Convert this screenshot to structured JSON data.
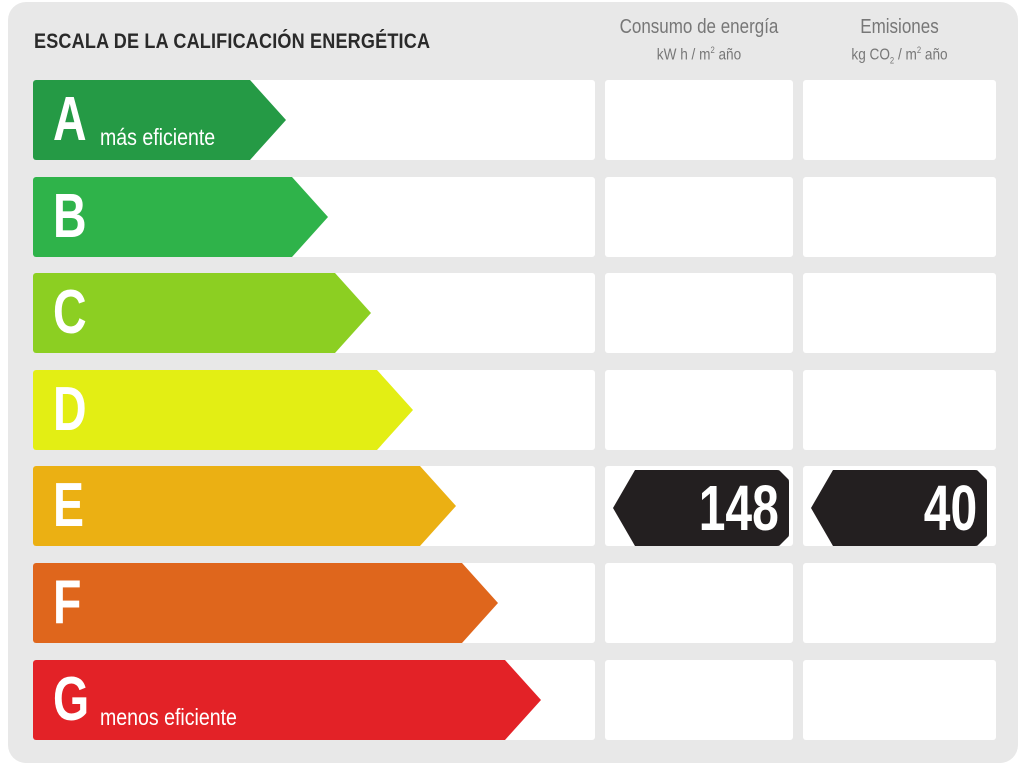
{
  "title": "ESCALA DE LA CALIFICACIÓN ENERGÉTICA",
  "columns": {
    "energy": {
      "title": "Consumo de energía",
      "unit_pre": "kW h / m",
      "unit_sup": "2",
      "unit_post": " año"
    },
    "emissions": {
      "title": "Emisiones",
      "unit_pre": "kg CO",
      "unit_sub": "2",
      "unit_mid": " / m",
      "unit_sup": "2",
      "unit_post": " año"
    }
  },
  "ratings": [
    {
      "letter": "A",
      "label": "más eficiente",
      "color": "#259a45"
    },
    {
      "letter": "B",
      "label": "",
      "color": "#2fb34a"
    },
    {
      "letter": "C",
      "label": "",
      "color": "#8ccf22"
    },
    {
      "letter": "D",
      "label": "",
      "color": "#e3ee14"
    },
    {
      "letter": "E",
      "label": "",
      "color": "#ebb013"
    },
    {
      "letter": "F",
      "label": "",
      "color": "#df661c"
    },
    {
      "letter": "G",
      "label": "menos eficiente",
      "color": "#e32227"
    }
  ],
  "result": {
    "rating": "E",
    "energy_value": "148",
    "emissions_value": "40",
    "badge_color": "#231f20"
  }
}
